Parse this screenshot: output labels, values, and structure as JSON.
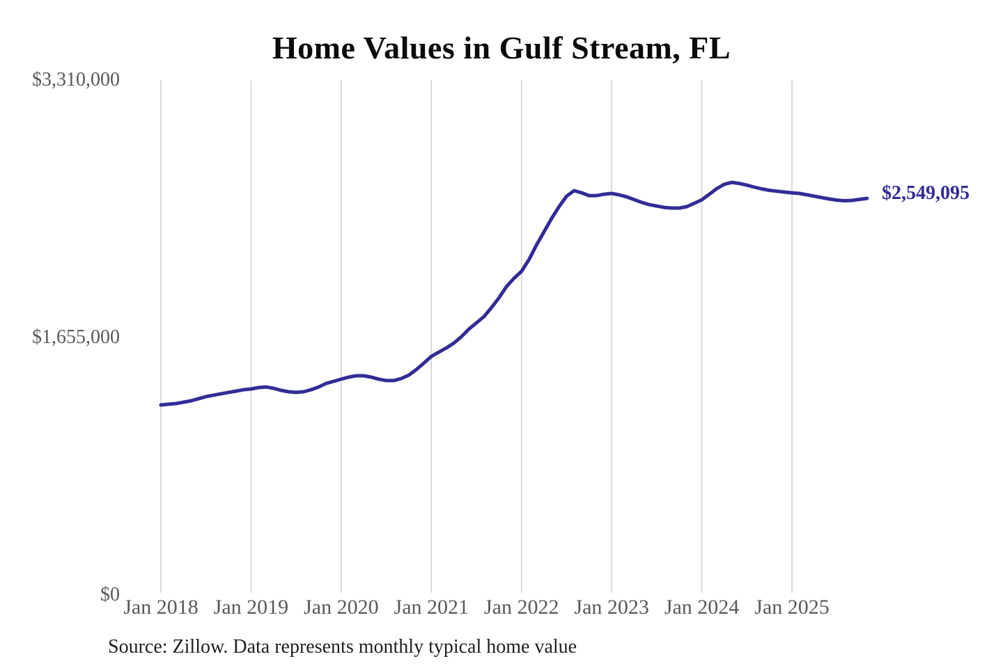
{
  "chart_data": {
    "type": "line",
    "title": "Home Values in Gulf Stream, FL",
    "source_note": "Source: Zillow. Data represents monthly typical home value",
    "end_label": "$2,549,095",
    "end_value": 2549095,
    "line_color": "#322c96",
    "grid_color": "#cccccc",
    "axis_label_color": "#58595b",
    "grid": "vertical-only",
    "legend_position": "none",
    "ylim": [
      0,
      3310000
    ],
    "y_ticks": [
      {
        "label": "$3,310,000",
        "value": 3310000
      },
      {
        "label": "$1,655,000",
        "value": 1655000
      },
      {
        "label": "$0",
        "value": 0
      }
    ],
    "x_ticks": [
      "Jan 2018",
      "Jan 2019",
      "Jan 2020",
      "Jan 2021",
      "Jan 2022",
      "Jan 2023",
      "Jan 2024",
      "Jan 2025"
    ],
    "x_range": [
      "Jan 2018",
      "Nov 2025"
    ],
    "x_frequency": "monthly",
    "series": [
      {
        "name": "Typical home value ($)",
        "values": [
          1221000,
          1226000,
          1230000,
          1239000,
          1248000,
          1261000,
          1275000,
          1284000,
          1293000,
          1302000,
          1310000,
          1319000,
          1324000,
          1333000,
          1337000,
          1328000,
          1315000,
          1306000,
          1302000,
          1306000,
          1319000,
          1337000,
          1360000,
          1373000,
          1387000,
          1400000,
          1409000,
          1409000,
          1400000,
          1387000,
          1378000,
          1378000,
          1391000,
          1413000,
          1449000,
          1490000,
          1534000,
          1561000,
          1588000,
          1619000,
          1660000,
          1709000,
          1749000,
          1789000,
          1847000,
          1910000,
          1982000,
          2035000,
          2080000,
          2156000,
          2250000,
          2335000,
          2420000,
          2496000,
          2563000,
          2599000,
          2585000,
          2567000,
          2567000,
          2576000,
          2581000,
          2572000,
          2559000,
          2541000,
          2523000,
          2509000,
          2500000,
          2491000,
          2487000,
          2487000,
          2496000,
          2518000,
          2540000,
          2576000,
          2612000,
          2640000,
          2652000,
          2645000,
          2634000,
          2621000,
          2610000,
          2601000,
          2595000,
          2590000,
          2585000,
          2581000,
          2572000,
          2563000,
          2554000,
          2545000,
          2538000,
          2534000,
          2536000,
          2543000,
          2549095
        ]
      }
    ]
  }
}
